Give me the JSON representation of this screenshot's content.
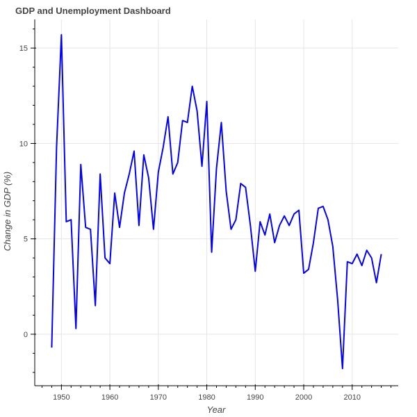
{
  "chart_data": {
    "type": "line",
    "title": "GDP and Unemployment Dashboard",
    "xlabel": "Year",
    "ylabel": "Change in GDP (%)",
    "xlim": [
      1944.5,
      2019.5
    ],
    "ylim": [
      -2.7,
      16.5
    ],
    "x_ticks": [
      1950,
      1960,
      1970,
      1980,
      1990,
      2000,
      2010
    ],
    "y_ticks": [
      0,
      5,
      10,
      15
    ],
    "grid": true,
    "series": [
      {
        "color": "#0000ff",
        "x": [
          1948,
          1949,
          1950,
          1951,
          1952,
          1953,
          1954,
          1955,
          1956,
          1957,
          1958,
          1959,
          1960,
          1961,
          1962,
          1963,
          1964,
          1965,
          1966,
          1967,
          1968,
          1969,
          1970,
          1971,
          1972,
          1973,
          1974,
          1975,
          1976,
          1977,
          1978,
          1979,
          1980,
          1981,
          1982,
          1983,
          1984,
          1985,
          1986,
          1987,
          1988,
          1989,
          1990,
          1991,
          1992,
          1993,
          1994,
          1995,
          1996,
          1997,
          1998,
          1999,
          2000,
          2001,
          2002,
          2003,
          2004,
          2005,
          2006,
          2007,
          2008,
          2009,
          2010,
          2011,
          2012,
          2013,
          2014,
          2015,
          2016
        ],
        "y": [
          -0.7,
          9.8,
          15.7,
          5.9,
          6.0,
          0.3,
          8.9,
          5.6,
          5.5,
          1.5,
          8.4,
          4.0,
          3.7,
          7.4,
          5.6,
          7.4,
          8.4,
          9.6,
          5.7,
          9.4,
          8.2,
          5.5,
          8.5,
          9.8,
          11.4,
          8.4,
          9.0,
          11.2,
          11.1,
          13.0,
          11.7,
          8.8,
          12.2,
          4.3,
          8.7,
          11.1,
          7.5,
          5.5,
          6.0,
          7.9,
          7.7,
          5.7,
          3.3,
          5.9,
          5.2,
          6.3,
          4.8,
          5.7,
          6.2,
          5.7,
          6.3,
          6.5,
          3.2,
          3.4,
          4.8,
          6.6,
          6.7,
          6.0,
          4.6,
          1.8,
          -1.8,
          3.8,
          3.7,
          4.2,
          3.6,
          4.4,
          4.0,
          2.7,
          4.2
        ]
      }
    ]
  }
}
